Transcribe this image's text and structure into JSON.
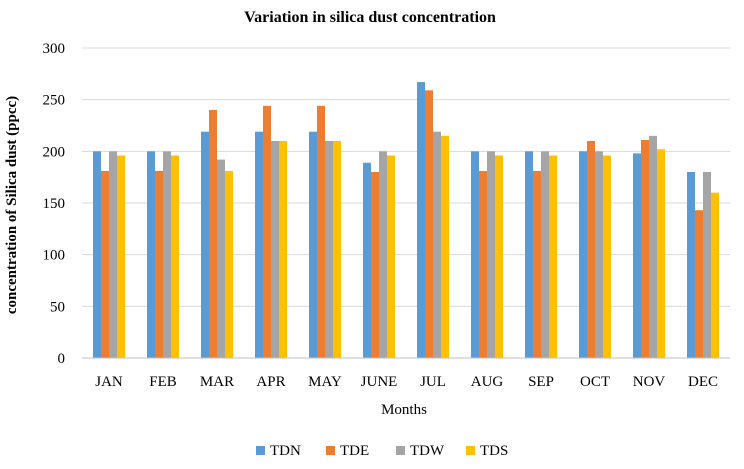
{
  "chart_data": {
    "type": "bar",
    "title": "Variation in silica dust concentration",
    "xlabel": "Months",
    "ylabel": "concentration of Silica dust (ppcc)",
    "ylim": [
      0,
      300
    ],
    "yticks": [
      0,
      50,
      100,
      150,
      200,
      250,
      300
    ],
    "grid": true,
    "legend_position": "bottom",
    "categories": [
      "JAN",
      "FEB",
      "MAR",
      "APR",
      "MAY",
      "JUNE",
      "JUL",
      "AUG",
      "SEP",
      "OCT",
      "NOV",
      "DEC"
    ],
    "series": [
      {
        "name": "TDN",
        "color": "#5B9BD5",
        "values": [
          200,
          200,
          219,
          219,
          219,
          189,
          267,
          200,
          200,
          200,
          198,
          180
        ]
      },
      {
        "name": "TDE",
        "color": "#ED7D31",
        "values": [
          181,
          181,
          240,
          244,
          244,
          180,
          259,
          181,
          181,
          210,
          211,
          143
        ]
      },
      {
        "name": "TDW",
        "color": "#A5A5A5",
        "values": [
          200,
          200,
          192,
          210,
          210,
          200,
          219,
          200,
          200,
          200,
          215,
          180
        ]
      },
      {
        "name": "TDS",
        "color": "#FFC000",
        "values": [
          196,
          196,
          181,
          210,
          210,
          196,
          215,
          196,
          196,
          196,
          202,
          160
        ]
      }
    ]
  }
}
